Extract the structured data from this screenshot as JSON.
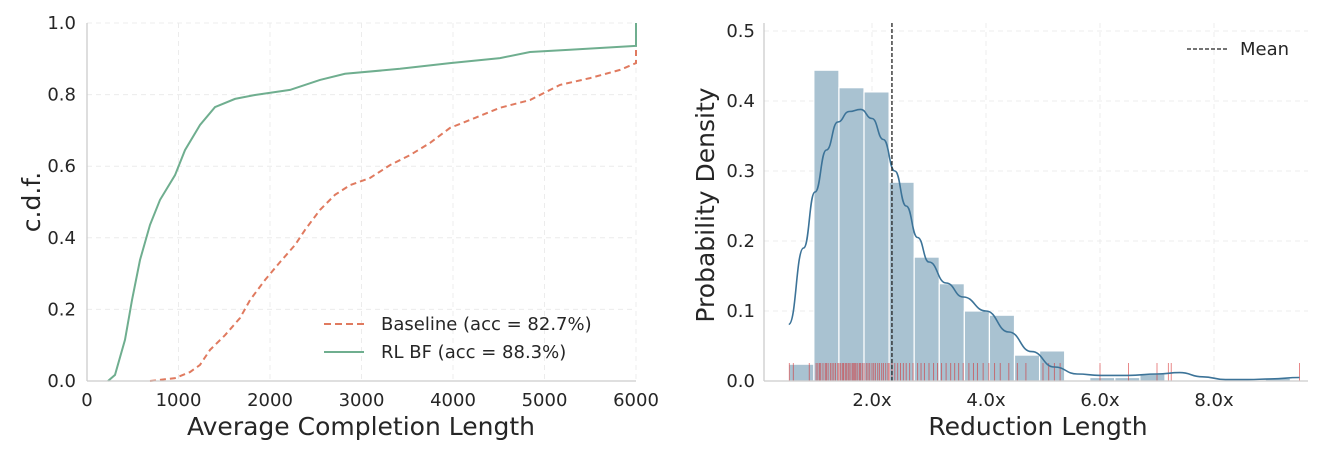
{
  "chart_data": [
    {
      "type": "line",
      "xlabel": "Average Completion Length",
      "ylabel": "c.d.f.",
      "xlim": [
        0,
        6000
      ],
      "ylim": [
        0,
        1.0
      ],
      "xticks": [
        "0",
        "1000",
        "2000",
        "3000",
        "4000",
        "5000",
        "6000"
      ],
      "yticks": [
        "0.0",
        "0.2",
        "0.4",
        "0.6",
        "0.8",
        "1.0"
      ],
      "grid": true,
      "legend_position": "lower-right",
      "series": [
        {
          "name": "Baseline (acc = 82.7%)",
          "color": "#e07a5f",
          "style": "dashed",
          "x": [
            689,
            962,
            1126,
            1235,
            1344,
            1508,
            1672,
            1781,
            1945,
            2109,
            2273,
            2383,
            2546,
            2710,
            2874,
            3093,
            3311,
            3530,
            3749,
            3967,
            4240,
            4514,
            4842,
            5169,
            5497,
            5825,
            6000,
            6000
          ],
          "y": [
            0,
            0.008,
            0.025,
            0.045,
            0.087,
            0.128,
            0.176,
            0.226,
            0.282,
            0.332,
            0.38,
            0.422,
            0.478,
            0.52,
            0.547,
            0.567,
            0.603,
            0.631,
            0.665,
            0.707,
            0.735,
            0.763,
            0.785,
            0.827,
            0.846,
            0.869,
            0.888,
            0.925
          ]
        },
        {
          "name": "RL BF (acc = 88.3%)",
          "color": "#6fae8f",
          "style": "solid",
          "x": [
            230,
            306,
            415,
            492,
            579,
            689,
            798,
            962,
            1071,
            1235,
            1399,
            1617,
            1836,
            2219,
            2546,
            2820,
            3421,
            3967,
            4514,
            4842,
            5279,
            6000,
            6000
          ],
          "y": [
            0,
            0.017,
            0.115,
            0.226,
            0.338,
            0.436,
            0.506,
            0.575,
            0.645,
            0.715,
            0.765,
            0.788,
            0.799,
            0.813,
            0.841,
            0.858,
            0.872,
            0.888,
            0.902,
            0.919,
            0.925,
            0.936,
            1.0
          ]
        }
      ]
    },
    {
      "type": "histogram",
      "xlabel": "Reduction Length",
      "ylabel": "Probability Density",
      "xlim": [
        0.1,
        9.65
      ],
      "ylim": [
        0,
        0.52
      ],
      "xticks": [
        {
          "value": 2,
          "label": "2.0x"
        },
        {
          "value": 4,
          "label": "4.0x"
        },
        {
          "value": 6,
          "label": "6.0x"
        },
        {
          "value": 8,
          "label": "8.0x"
        }
      ],
      "yticks": [
        "0.0",
        "0.1",
        "0.2",
        "0.3",
        "0.4",
        "0.5"
      ],
      "grid": true,
      "legend_position": "top-right",
      "bar_color": "#a9c2d1",
      "kde_color": "#3c7398",
      "rug_color": "#d62728",
      "bin_start": 0.54,
      "bin_width": 0.44,
      "bin_densities": [
        0.024,
        0.444,
        0.419,
        0.413,
        0.284,
        0.177,
        0.139,
        0.1,
        0.094,
        0.037,
        0.043,
        0,
        0.005,
        0.005,
        0.01,
        0,
        0,
        0,
        0,
        0.004
      ],
      "kde": {
        "x": [
          0.54,
          0.8,
          1.0,
          1.2,
          1.4,
          1.6,
          1.8,
          2.0,
          2.2,
          2.4,
          2.6,
          2.8,
          3.0,
          3.3,
          3.6,
          4.0,
          4.4,
          4.8,
          5.2,
          5.6,
          6.0,
          6.5,
          7.0,
          7.4,
          7.8,
          8.2,
          8.6,
          9.0,
          9.5
        ],
        "y": [
          0.081,
          0.19,
          0.27,
          0.33,
          0.37,
          0.385,
          0.388,
          0.375,
          0.345,
          0.3,
          0.25,
          0.205,
          0.17,
          0.14,
          0.12,
          0.1,
          0.07,
          0.042,
          0.02,
          0.01,
          0.008,
          0.008,
          0.01,
          0.012,
          0.006,
          0.002,
          0.002,
          0.003,
          0.005
        ]
      },
      "mean": {
        "value": 2.35,
        "label": "Mean"
      },
      "rug": [
        0.55,
        0.62,
        0.9,
        1.02,
        1.05,
        1.08,
        1.1,
        1.14,
        1.18,
        1.2,
        1.23,
        1.27,
        1.3,
        1.33,
        1.36,
        1.4,
        1.42,
        1.45,
        1.48,
        1.5,
        1.53,
        1.55,
        1.58,
        1.6,
        1.63,
        1.66,
        1.68,
        1.7,
        1.72,
        1.75,
        1.78,
        1.8,
        1.83,
        1.86,
        1.9,
        1.93,
        1.96,
        2.0,
        2.03,
        2.06,
        2.1,
        2.13,
        2.17,
        2.2,
        2.24,
        2.28,
        2.3,
        2.35,
        2.4,
        2.45,
        2.5,
        2.55,
        2.6,
        2.66,
        2.72,
        2.8,
        2.86,
        2.92,
        3.0,
        3.08,
        3.15,
        3.22,
        3.3,
        3.38,
        3.45,
        3.52,
        3.6,
        3.7,
        3.78,
        3.85,
        3.95,
        4.05,
        4.15,
        4.25,
        4.4,
        4.55,
        4.7,
        5.0,
        5.1,
        5.2,
        5.3,
        6.0,
        6.5,
        7.0,
        7.2,
        7.25,
        9.5
      ]
    }
  ]
}
